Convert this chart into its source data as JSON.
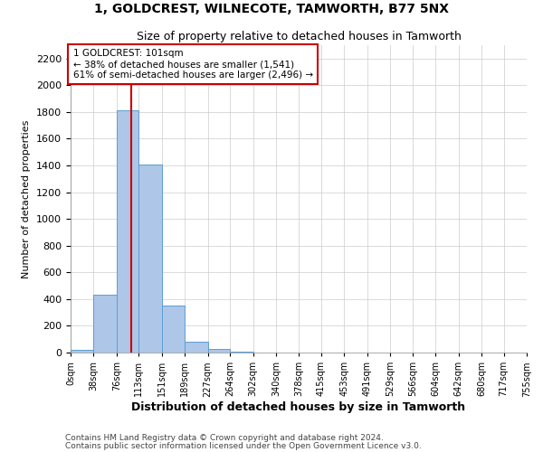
{
  "title": "1, GOLDCREST, WILNECOTE, TAMWORTH, B77 5NX",
  "subtitle": "Size of property relative to detached houses in Tamworth",
  "xlabel": "Distribution of detached houses by size in Tamworth",
  "ylabel": "Number of detached properties",
  "bin_edges": [
    0,
    38,
    76,
    113,
    151,
    189,
    227,
    264,
    302,
    340,
    378,
    415,
    453,
    491,
    529,
    566,
    604,
    642,
    680,
    717,
    755
  ],
  "bar_heights": [
    20,
    430,
    1810,
    1410,
    350,
    80,
    25,
    10,
    0,
    0,
    0,
    0,
    0,
    0,
    0,
    0,
    0,
    0,
    0,
    0
  ],
  "bar_color": "#aec6e8",
  "bar_edgecolor": "#5a9fd4",
  "property_size": 101,
  "redline_color": "#cc0000",
  "annotation_line1": "1 GOLDCREST: 101sqm",
  "annotation_line2": "← 38% of detached houses are smaller (1,541)",
  "annotation_line3": "61% of semi-detached houses are larger (2,496) →",
  "annotation_box_edgecolor": "#cc0000",
  "annotation_box_facecolor": "#ffffff",
  "ylim": [
    0,
    2300
  ],
  "yticks": [
    0,
    200,
    400,
    600,
    800,
    1000,
    1200,
    1400,
    1600,
    1800,
    2000,
    2200
  ],
  "tick_labels": [
    "0sqm",
    "38sqm",
    "76sqm",
    "113sqm",
    "151sqm",
    "189sqm",
    "227sqm",
    "264sqm",
    "302sqm",
    "340sqm",
    "378sqm",
    "415sqm",
    "453sqm",
    "491sqm",
    "529sqm",
    "566sqm",
    "604sqm",
    "642sqm",
    "680sqm",
    "717sqm",
    "755sqm"
  ],
  "footer_line1": "Contains HM Land Registry data © Crown copyright and database right 2024.",
  "footer_line2": "Contains public sector information licensed under the Open Government Licence v3.0.",
  "bg_color": "#ffffff",
  "grid_color": "#cccccc"
}
